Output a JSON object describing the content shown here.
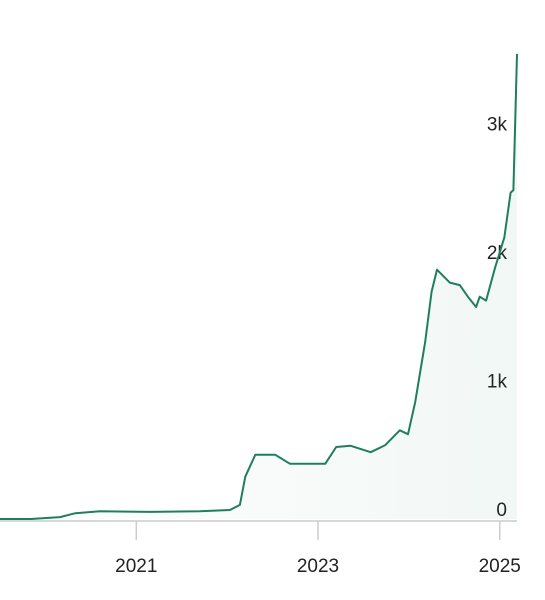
{
  "chart_data": {
    "type": "line",
    "x": [
      2019.5,
      2019.84,
      2020.16,
      2020.33,
      2020.6,
      2021.15,
      2021.7,
      2022.03,
      2022.14,
      2022.2,
      2022.31,
      2022.53,
      2022.69,
      2023.08,
      2023.2,
      2023.36,
      2023.58,
      2023.74,
      2023.9,
      2023.99,
      2024.07,
      2024.18,
      2024.25,
      2024.31,
      2024.45,
      2024.56,
      2024.65,
      2024.74,
      2024.78,
      2024.85,
      2024.95,
      2025.05,
      2025.12,
      2025.15,
      2025.19
    ],
    "series": [
      {
        "color": "#1e7f5c",
        "values": [
          0,
          0,
          15,
          45,
          60,
          55,
          60,
          70,
          110,
          330,
          500,
          500,
          430,
          430,
          560,
          570,
          520,
          575,
          690,
          660,
          910,
          1380,
          1770,
          1940,
          1840,
          1820,
          1730,
          1650,
          1730,
          1700,
          1960,
          2190,
          2540,
          2560,
          3620
        ]
      }
    ],
    "xlim": [
      2019.5,
      2025.19
    ],
    "xticks": [
      2021,
      2023,
      2025
    ],
    "ylim": [
      0,
      3650
    ],
    "yticks": [
      0,
      {
        "value": 1000,
        "label": "1k"
      },
      {
        "value": 2000,
        "label": "2k"
      },
      {
        "value": 3000,
        "label": "3k"
      }
    ]
  }
}
